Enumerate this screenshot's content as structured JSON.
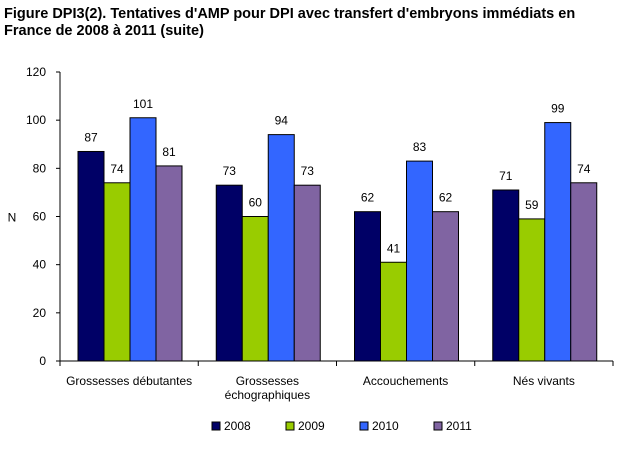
{
  "title_line1": "Figure DPI3(2). Tentatives d'AMP pour DPI avec transfert d'embryons immédiats en",
  "title_line2": "France de 2008 à 2011 (suite)",
  "chart_data": {
    "type": "bar",
    "title": "Figure DPI3(2). Tentatives d'AMP pour DPI avec transfert d'embryons immédiats en France de 2008 à 2011 (suite)",
    "xlabel": "",
    "ylabel": "N",
    "ylim": [
      0,
      120
    ],
    "yticks": [
      0,
      20,
      40,
      60,
      80,
      100,
      120
    ],
    "categories": [
      [
        "Grossesses débutantes"
      ],
      [
        "Grossesses",
        "échographiques"
      ],
      [
        "Accouchements"
      ],
      [
        "Nés vivants"
      ]
    ],
    "series": [
      {
        "name": "2008",
        "color": "#000066",
        "values": [
          87,
          73,
          62,
          71
        ]
      },
      {
        "name": "2009",
        "color": "#99CC00",
        "values": [
          74,
          60,
          41,
          59
        ]
      },
      {
        "name": "2010",
        "color": "#3366FF",
        "values": [
          101,
          94,
          83,
          99
        ]
      },
      {
        "name": "2011",
        "color": "#8064A2",
        "values": [
          81,
          73,
          62,
          74
        ]
      }
    ],
    "grid": false,
    "data_labels": true,
    "legend_position": "bottom"
  }
}
